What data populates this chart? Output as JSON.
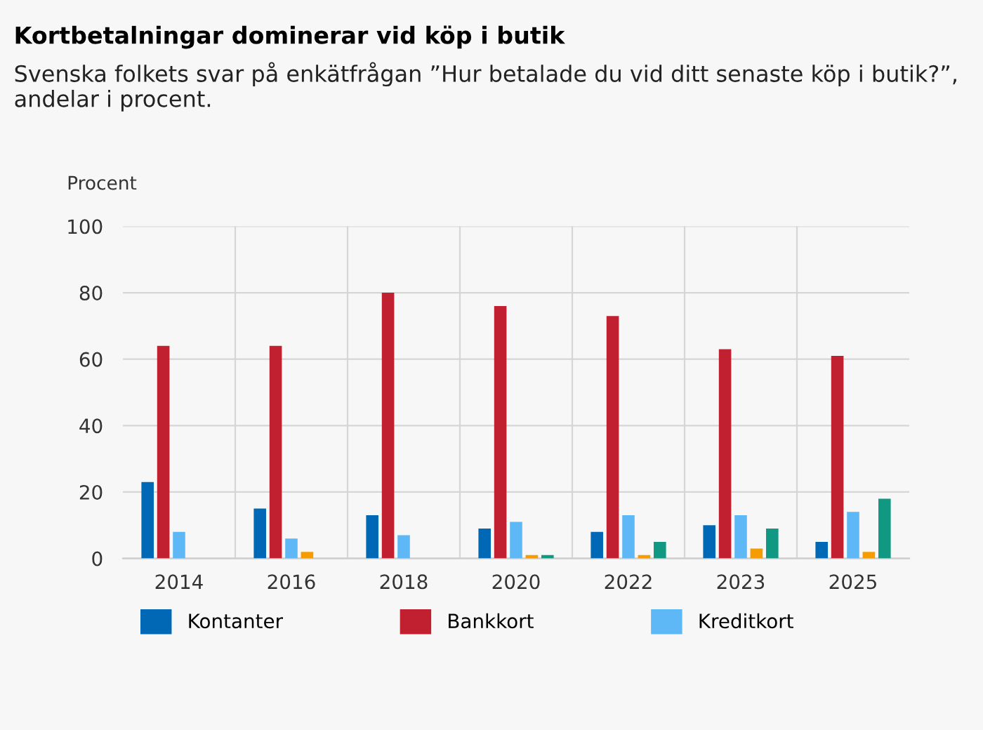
{
  "chart_data": {
    "type": "bar",
    "title": "Kortbetalningar dominerar vid köp i butik",
    "subtitle": "Svenska folkets svar på enkätfrågan ”Hur betalade du vid ditt senaste köp i butik?”, andelar i procent.",
    "ylabel": "Procent",
    "categories": [
      "2014",
      "2016",
      "2018",
      "2020",
      "2022",
      "2023",
      "2025"
    ],
    "series": [
      {
        "name": "Kontanter",
        "color": "#0068b4",
        "values": [
          23,
          15,
          13,
          9,
          8,
          10,
          5
        ]
      },
      {
        "name": "Bankkort",
        "color": "#c0202f",
        "values": [
          64,
          64,
          80,
          76,
          73,
          63,
          61
        ]
      },
      {
        "name": "Kreditkort",
        "color": "#5db8f5",
        "values": [
          8,
          6,
          7,
          11,
          13,
          13,
          14
        ]
      },
      {
        "color": "#f59c00",
        "values": [
          null,
          2,
          null,
          1,
          1,
          3,
          2
        ]
      },
      {
        "color": "#109882",
        "values": [
          null,
          null,
          null,
          1,
          5,
          9,
          18
        ]
      }
    ],
    "ylim": [
      0,
      100
    ],
    "yticks": [
      0,
      20,
      40,
      60,
      80,
      100
    ],
    "grid": true,
    "legend": "bottom"
  }
}
